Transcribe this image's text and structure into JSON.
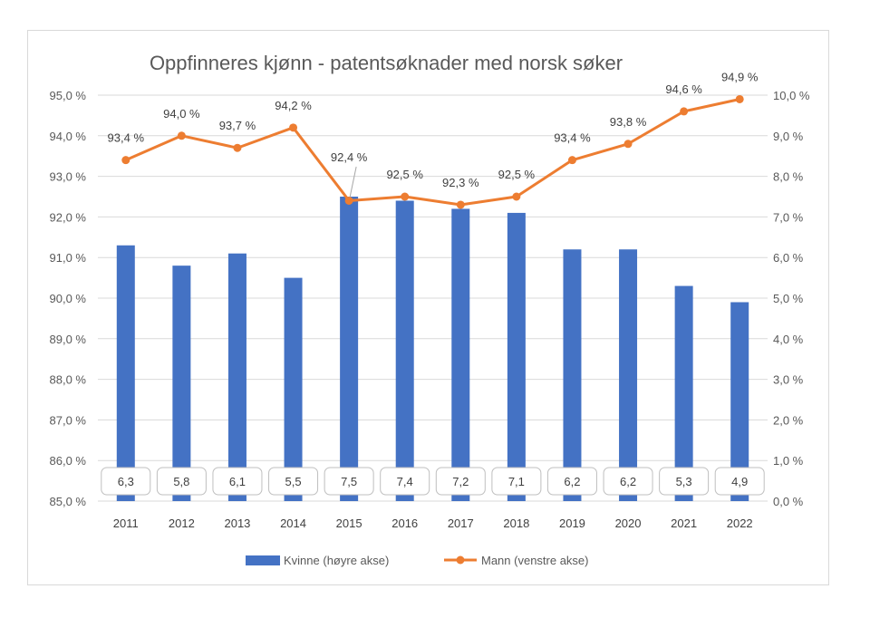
{
  "chart_data": {
    "type": "bar+line",
    "title": "Oppfinneres kjønn - patentsøknader med norsk søker",
    "categories": [
      "2011",
      "2012",
      "2013",
      "2014",
      "2015",
      "2016",
      "2017",
      "2018",
      "2019",
      "2020",
      "2021",
      "2022"
    ],
    "series": [
      {
        "name": "Kvinne (høyre akse)",
        "type": "bar",
        "axis": "right",
        "color": "#4472C4",
        "values": [
          6.3,
          5.8,
          6.1,
          5.5,
          7.5,
          7.4,
          7.2,
          7.1,
          6.2,
          6.2,
          5.3,
          4.9
        ],
        "labels": [
          "6,3",
          "5,8",
          "6,1",
          "5,5",
          "7,5",
          "7,4",
          "7,2",
          "7,1",
          "6,2",
          "6,2",
          "5,3",
          "4,9"
        ]
      },
      {
        "name": "Mann (venstre akse)",
        "type": "line",
        "axis": "left",
        "color": "#ED7D31",
        "values": [
          93.4,
          94.0,
          93.7,
          94.2,
          92.4,
          92.5,
          92.3,
          92.5,
          93.4,
          93.8,
          94.6,
          94.9
        ],
        "labels": [
          "93,4 %",
          "94,0 %",
          "93,7 %",
          "94,2 %",
          "92,4 %",
          "92,5 %",
          "92,3 %",
          "92,5 %",
          "93,4 %",
          "93,8 %",
          "94,6 %",
          "94,9 %"
        ]
      }
    ],
    "left_axis": {
      "range": [
        85.0,
        95.0
      ],
      "ticks": [
        "85,0 %",
        "86,0 %",
        "87,0 %",
        "88,0 %",
        "89,0 %",
        "90,0 %",
        "91,0 %",
        "92,0 %",
        "93,0 %",
        "94,0 %",
        "95,0 %"
      ]
    },
    "right_axis": {
      "range": [
        0.0,
        10.0
      ],
      "ticks": [
        "0,0 %",
        "1,0 %",
        "2,0 %",
        "3,0 %",
        "4,0 %",
        "5,0 %",
        "6,0 %",
        "7,0 %",
        "8,0 %",
        "9,0 %",
        "10,0 %"
      ]
    },
    "grid": true,
    "legend_position": "bottom"
  }
}
